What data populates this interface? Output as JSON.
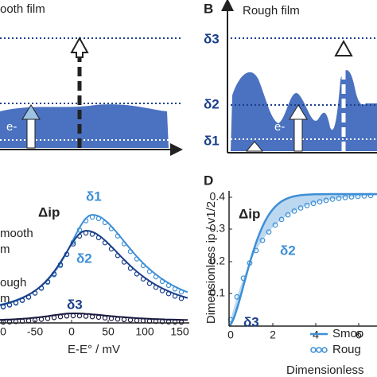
{
  "panel_a": {
    "title": "ooth film",
    "electron": "e-"
  },
  "panel_b": {
    "label": "B",
    "title": "Rough film",
    "d3": "δ3",
    "d2": "δ2",
    "d1": "δ1",
    "electron": "e-"
  },
  "panel_c": {
    "d1": "δ1",
    "d2": "δ2",
    "d3": "δ3",
    "delta_ip": "Δip",
    "smooth_1": "mooth",
    "smooth_2": "m",
    "rough_1": "ough",
    "rough_2": "m",
    "xticks": [
      "0",
      "-50",
      "0",
      "50",
      "100",
      "150"
    ],
    "xlabel": "E-E° / mV"
  },
  "panel_d": {
    "label": "D",
    "d2": "δ2",
    "d3": "δ3",
    "delta_ip": "Δip",
    "ylabel": "Dimensionless ip / v1/2",
    "yticks": [
      "0.4",
      "0.3",
      "0.2",
      "0.1"
    ],
    "xticks": [
      "0",
      "2",
      "4",
      "6"
    ],
    "xlabel": "Dimensionless",
    "legend": [
      "Smoo",
      "Roug"
    ]
  }
}
